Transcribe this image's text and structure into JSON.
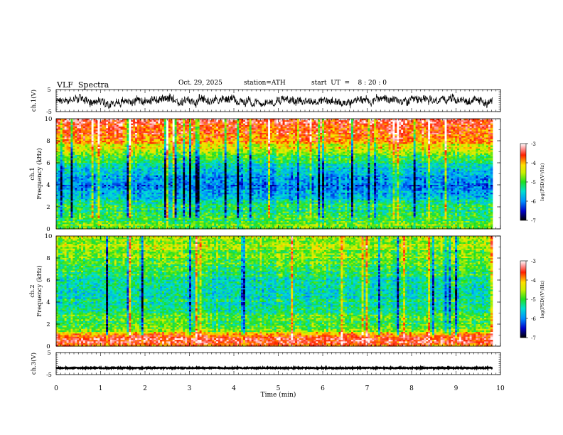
{
  "header": {
    "title": "VLF  Spectra",
    "date": "Oct. 29, 2025",
    "station": "station=ATH",
    "start": "start  UT  =    8 : 20 : 0"
  },
  "chart_data": [
    {
      "type": "line",
      "name": "ch1-waveform",
      "ylabel": "ch.1(V)",
      "yticks": [
        "5",
        "-5"
      ],
      "ylim": [
        -5,
        5
      ],
      "xlim": [
        0,
        10
      ],
      "note": "dense noisy waveform, amplitude roughly +-3 V"
    },
    {
      "type": "heatmap",
      "name": "ch1-spectrogram",
      "ylabel": "ch.1\nFrequency  (kHz)",
      "ylabel_lines": [
        "ch.1",
        "Frequency  (kHz)"
      ],
      "yticks": [
        "0",
        "2",
        "4",
        "6",
        "8",
        "10"
      ],
      "ylim": [
        0,
        10
      ],
      "xlim": [
        0,
        10
      ],
      "colorbar": {
        "label": "log(PSD)(V²/Hz)",
        "ticks": [
          "-3",
          "-4",
          "-5",
          "-6",
          "-7"
        ],
        "range": [
          -7,
          -3
        ]
      },
      "profile": [
        {
          "f": 0.0,
          "v": 0.55
        },
        {
          "f": 0.4,
          "v": 0.6
        },
        {
          "f": 0.8,
          "v": 0.5
        },
        {
          "f": 1.2,
          "v": 0.45
        },
        {
          "f": 1.6,
          "v": 0.42
        },
        {
          "f": 2.0,
          "v": 0.45
        },
        {
          "f": 2.4,
          "v": 0.42
        },
        {
          "f": 3.0,
          "v": 0.3
        },
        {
          "f": 4.0,
          "v": 0.22
        },
        {
          "f": 5.0,
          "v": 0.3
        },
        {
          "f": 6.0,
          "v": 0.45
        },
        {
          "f": 7.0,
          "v": 0.6
        },
        {
          "f": 8.0,
          "v": 0.75
        },
        {
          "f": 9.0,
          "v": 0.85
        },
        {
          "f": 10.0,
          "v": 0.9
        }
      ]
    },
    {
      "type": "heatmap",
      "name": "ch2-spectrogram",
      "ylabel": "ch.2\nFrequency  (kHz)",
      "ylabel_lines": [
        "ch.2",
        "Frequency  (kHz)"
      ],
      "yticks": [
        "0",
        "2",
        "4",
        "6",
        "8",
        "10"
      ],
      "ylim": [
        0,
        10
      ],
      "xlim": [
        0,
        10
      ],
      "colorbar": {
        "label": "log(PSD)(V²/Hz)",
        "ticks": [
          "-3",
          "-4",
          "-5",
          "-6",
          "-7"
        ],
        "range": [
          -7,
          -3
        ]
      },
      "profile": [
        {
          "f": 0.0,
          "v": 0.8
        },
        {
          "f": 0.6,
          "v": 0.95
        },
        {
          "f": 1.0,
          "v": 0.75
        },
        {
          "f": 1.5,
          "v": 0.55
        },
        {
          "f": 2.0,
          "v": 0.5
        },
        {
          "f": 3.0,
          "v": 0.48
        },
        {
          "f": 4.0,
          "v": 0.4
        },
        {
          "f": 5.0,
          "v": 0.38
        },
        {
          "f": 6.0,
          "v": 0.42
        },
        {
          "f": 7.0,
          "v": 0.5
        },
        {
          "f": 8.0,
          "v": 0.55
        },
        {
          "f": 9.0,
          "v": 0.6
        },
        {
          "f": 10.0,
          "v": 0.62
        }
      ]
    },
    {
      "type": "line",
      "name": "ch3-waveform",
      "ylabel": "ch.3(V)",
      "yticks": [
        "5",
        "-5"
      ],
      "ylim": [
        -5,
        5
      ],
      "xlim": [
        0,
        10
      ],
      "xlabel": "Time  (min)",
      "xticks": [
        "0",
        "1",
        "2",
        "3",
        "4",
        "5",
        "6",
        "7",
        "8",
        "9",
        "10"
      ],
      "note": "flat line near -2 V, data ends near 9.8 min"
    }
  ]
}
